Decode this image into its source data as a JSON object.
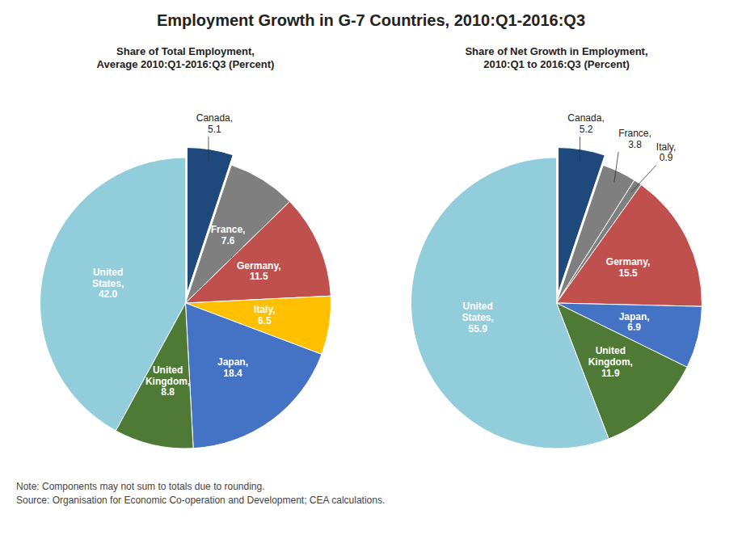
{
  "chart_data": [
    {
      "type": "pie",
      "title": "Employment Growth in G-7 Countries, 2010:Q1-2016:Q3",
      "subtitle": "Share of Total Employment,\nAverage 2010:Q1-2016:Q3 (Percent)",
      "categories": [
        "Canada",
        "France",
        "Germany",
        "Italy",
        "Japan",
        "United Kingdom",
        "United States"
      ],
      "values": [
        5.1,
        7.6,
        11.5,
        6.5,
        18.4,
        8.8,
        42.0
      ],
      "value_labels": [
        "Canada, 5.1",
        "France, 7.6",
        "Germany, 11.5",
        "Italy, 6.5",
        "Japan, 18.4",
        "United Kingdom, 8.8",
        "United States, 42.0"
      ],
      "colors": [
        "#1F497D",
        "#7F7F7F",
        "#C0504D",
        "#FFC000",
        "#4472C4",
        "#4E7A35",
        "#92CDDC"
      ],
      "data_labels": true,
      "annotations": [
        "Note: Components may not sum to totals due to rounding.",
        "Source: Organisation for Economic Co-operation and Development; CEA calculations."
      ]
    },
    {
      "type": "pie",
      "subtitle": "Share of Net Growth in Employment,\n2010:Q1 to 2016:Q3 (Percent)",
      "categories": [
        "Canada",
        "France",
        "Italy",
        "Germany",
        "Japan",
        "United Kingdom",
        "United States"
      ],
      "values": [
        5.2,
        3.8,
        0.9,
        15.5,
        6.9,
        11.9,
        55.9
      ],
      "value_labels": [
        "Canada, 5.2",
        "France, 3.8",
        "Italy, 0.9",
        "Germany, 15.5",
        "Japan, 6.9",
        "United Kingdom, 11.9",
        "United States, 55.9"
      ],
      "colors": [
        "#1F497D",
        "#7F7F7F",
        "#7F7F7F",
        "#C0504D",
        "#4472C4",
        "#4E7A35",
        "#92CDDC"
      ],
      "data_labels": true
    }
  ]
}
